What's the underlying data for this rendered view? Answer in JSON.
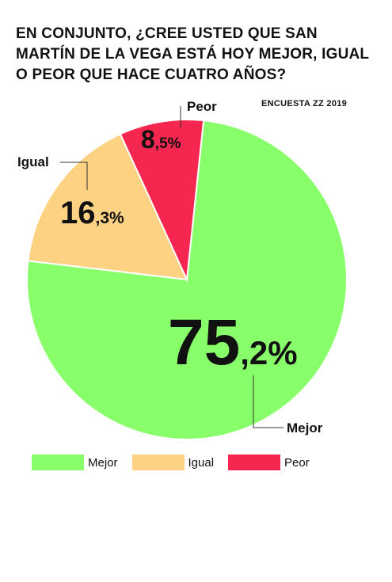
{
  "title": "EN CONJUNTO, ¿CREE USTED QUE SAN MARTÍN DE LA VEGA ESTÁ HOY MEJOR, IGUAL O PEOR QUE HACE CUATRO AÑOS?",
  "source": "ENCUESTA ZZ 2019",
  "chart_data": {
    "type": "pie",
    "title": "EN CONJUNTO, ¿CREE USTED QUE SAN MARTÍN DE LA VEGA ESTÁ HOY MEJOR, IGUAL O PEOR QUE HACE CUATRO AÑOS?",
    "slices": [
      {
        "label": "Mejor",
        "value": 75.2,
        "int": "75",
        "dec": ",2%",
        "color": "#88ff6a"
      },
      {
        "label": "Igual",
        "value": 16.3,
        "int": "16",
        "dec": ",3%",
        "color": "#fdd283"
      },
      {
        "label": "Peor",
        "value": 8.5,
        "int": "8",
        "dec": ",5%",
        "color": "#f5264f"
      }
    ],
    "legend_position": "bottom-left"
  }
}
